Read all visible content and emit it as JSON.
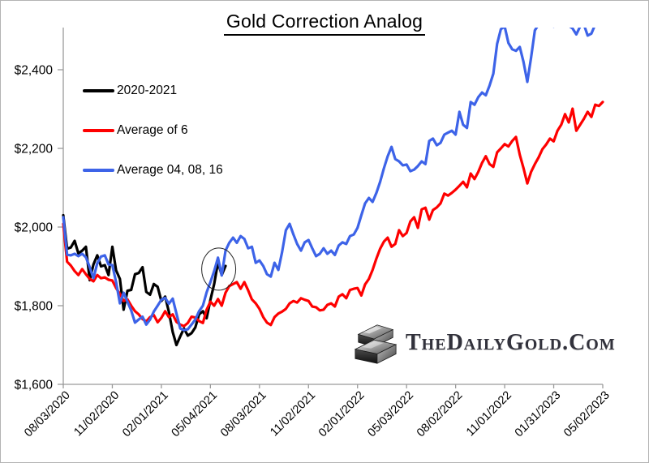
{
  "title": "Gold Correction Analog",
  "watermark": {
    "display": "TheDailyGold.Com"
  },
  "chart_data": {
    "type": "line",
    "title": "Gold Correction Analog",
    "x_unit": "weekly, weeks since 08/03/2020",
    "x_tick_weeks": [
      0,
      13,
      26,
      39,
      52,
      65,
      78,
      91,
      104,
      117,
      130,
      143
    ],
    "x_tick_labels": [
      "08/03/2020",
      "11/02/2020",
      "02/01/2021",
      "05/04/2021",
      "08/03/2021",
      "11/02/2021",
      "02/01/2022",
      "05/03/2022",
      "08/02/2022",
      "11/01/2022",
      "01/31/2023",
      "05/02/2023"
    ],
    "ylim": [
      1600,
      2507
    ],
    "y_ticks": [
      1600,
      1800,
      2000,
      2200,
      2400
    ],
    "y_tick_labels": [
      "$1,600",
      "$1,800",
      "$2,000",
      "$2,200",
      "$2,400"
    ],
    "grid": false,
    "legend_position": "inside-top-left",
    "axis_color": "#9a9a9a",
    "series": [
      {
        "name": "2020-2021",
        "color": "#000000",
        "start_week": 0,
        "values": [
          2030,
          1945,
          1948,
          1965,
          1933,
          1940,
          1950,
          1865,
          1905,
          1928,
          1900,
          1903,
          1878,
          1950,
          1890,
          1868,
          1790,
          1838,
          1840,
          1880,
          1883,
          1898,
          1835,
          1828,
          1855,
          1848,
          1812,
          1823,
          1784,
          1733,
          1700,
          1722,
          1742,
          1724,
          1730,
          1745,
          1778,
          1786,
          1768,
          1815,
          1855,
          1910,
          1878,
          1901
        ]
      },
      {
        "name": "Average of 6",
        "color": "#fe0000",
        "start_week": 0,
        "values": [
          2008,
          1912,
          1902,
          1888,
          1878,
          1893,
          1880,
          1868,
          1862,
          1878,
          1870,
          1872,
          1866,
          1864,
          1845,
          1830,
          1812,
          1816,
          1800,
          1786,
          1778,
          1766,
          1760,
          1771,
          1776,
          1758,
          1769,
          1786,
          1771,
          1778,
          1759,
          1752,
          1748,
          1756,
          1772,
          1770,
          1761,
          1756,
          1790,
          1810,
          1800,
          1817,
          1800,
          1833,
          1850,
          1855,
          1860,
          1843,
          1860,
          1839,
          1816,
          1806,
          1792,
          1771,
          1757,
          1751,
          1771,
          1780,
          1785,
          1792,
          1806,
          1812,
          1808,
          1819,
          1815,
          1812,
          1798,
          1796,
          1788,
          1790,
          1802,
          1806,
          1798,
          1823,
          1829,
          1819,
          1840,
          1843,
          1845,
          1826,
          1854,
          1868,
          1891,
          1920,
          1945,
          1963,
          1973,
          1950,
          1957,
          1992,
          1977,
          1985,
          2014,
          2025,
          1998,
          2045,
          2049,
          2019,
          2043,
          2050,
          2060,
          2085,
          2080,
          2087,
          2095,
          2105,
          2115,
          2101,
          2136,
          2122,
          2140,
          2163,
          2180,
          2160,
          2153,
          2190,
          2200,
          2211,
          2205,
          2219,
          2229,
          2184,
          2150,
          2111,
          2140,
          2160,
          2177,
          2198,
          2210,
          2225,
          2218,
          2245,
          2260,
          2287,
          2266,
          2301,
          2245,
          2260,
          2275,
          2293,
          2280,
          2311,
          2308,
          2318
        ]
      },
      {
        "name": "Average 04, 08, 16",
        "color": "#3d63e8",
        "start_week": 0,
        "values": [
          2025,
          1930,
          1928,
          1932,
          1926,
          1932,
          1923,
          1898,
          1870,
          1908,
          1925,
          1928,
          1905,
          1903,
          1860,
          1806,
          1833,
          1810,
          1788,
          1757,
          1765,
          1772,
          1752,
          1765,
          1785,
          1800,
          1815,
          1820,
          1805,
          1818,
          1780,
          1742,
          1738,
          1740,
          1752,
          1765,
          1786,
          1800,
          1834,
          1860,
          1888,
          1922,
          1877,
          1940,
          1960,
          1973,
          1960,
          1977,
          1970,
          1946,
          1950,
          1909,
          1915,
          1901,
          1880,
          1874,
          1909,
          1891,
          1936,
          1992,
          2008,
          1981,
          1957,
          1940,
          1961,
          1967,
          1946,
          1926,
          1932,
          1946,
          1932,
          1940,
          1929,
          1953,
          1961,
          1957,
          1977,
          1981,
          1998,
          2030,
          2060,
          2074,
          2064,
          2087,
          2115,
          2150,
          2180,
          2204,
          2173,
          2167,
          2157,
          2159,
          2142,
          2146,
          2155,
          2167,
          2160,
          2219,
          2225,
          2208,
          2214,
          2235,
          2240,
          2245,
          2235,
          2293,
          2260,
          2252,
          2318,
          2311,
          2330,
          2342,
          2335,
          2360,
          2390,
          2466,
          2503,
          2510,
          2468,
          2452,
          2448,
          2458,
          2420,
          2369,
          2430,
          2500,
          2515,
          2520,
          2520,
          2515,
          2510,
          2518,
          2522,
          2515,
          2512,
          2505,
          2490,
          2510,
          2515,
          2487,
          2492,
          2515,
          2520,
          2522
        ]
      }
    ],
    "annotation": {
      "type": "ellipse",
      "x_week": 41.2,
      "value": 1893,
      "note": "circle marking end of 2020-2021 line"
    }
  }
}
